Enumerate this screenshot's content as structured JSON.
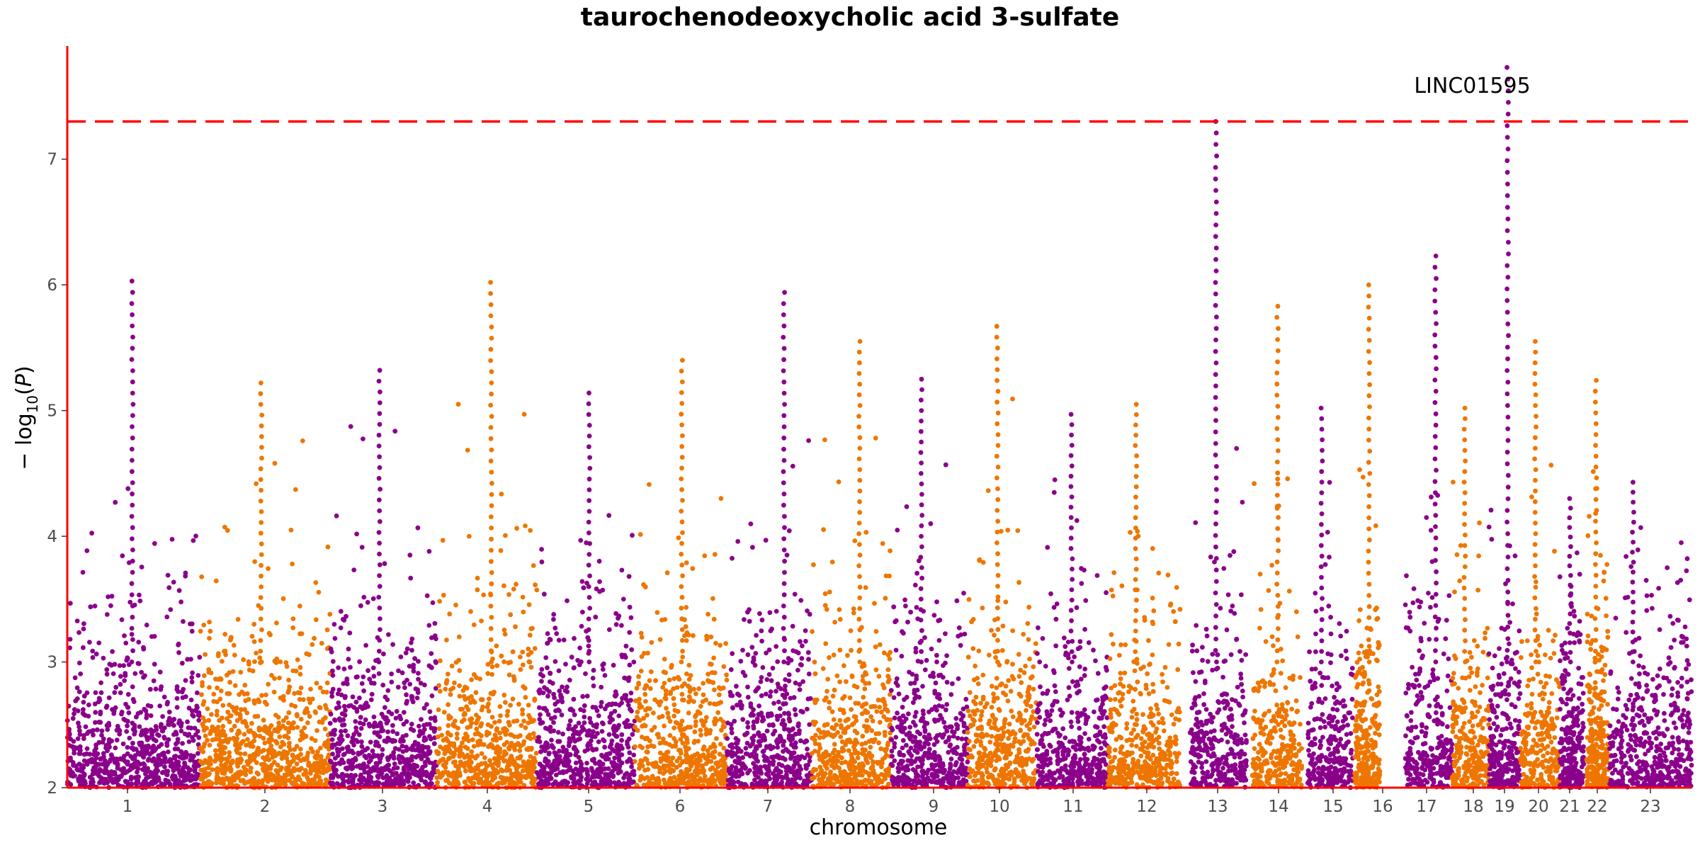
{
  "chart_data": {
    "type": "scatter",
    "subtype": "manhattan",
    "title": "taurochenodeoxycholic acid 3-sulfate",
    "xlabel": "chromosome",
    "ylabel": "−log10(P)",
    "ylim": [
      2,
      7.9
    ],
    "y_ticks": [
      2,
      3,
      4,
      5,
      6,
      7
    ],
    "grid": false,
    "legend": "none",
    "colors": {
      "odd": "#8B008B",
      "even": "#EE7600",
      "threshold": "#FF0000",
      "axis": "#FF0000"
    },
    "threshold": 7.3,
    "threshold_style": "dashed",
    "chromosomes": [
      "1",
      "2",
      "3",
      "4",
      "5",
      "6",
      "7",
      "8",
      "9",
      "10",
      "11",
      "12",
      "13",
      "14",
      "15",
      "16",
      "17",
      "18",
      "19",
      "20",
      "21",
      "22",
      "23"
    ],
    "peaks": [
      {
        "chr": "1",
        "value": 6.03
      },
      {
        "chr": "2",
        "value": 5.22
      },
      {
        "chr": "3",
        "value": 5.32
      },
      {
        "chr": "4",
        "value": 6.02
      },
      {
        "chr": "5",
        "value": 5.14
      },
      {
        "chr": "6",
        "value": 5.4
      },
      {
        "chr": "7",
        "value": 5.94
      },
      {
        "chr": "8",
        "value": 5.55
      },
      {
        "chr": "9",
        "value": 5.25
      },
      {
        "chr": "10",
        "value": 5.67
      },
      {
        "chr": "11",
        "value": 4.97
      },
      {
        "chr": "12",
        "value": 5.05
      },
      {
        "chr": "13",
        "value": 7.3
      },
      {
        "chr": "14",
        "value": 5.83
      },
      {
        "chr": "15",
        "value": 5.02
      },
      {
        "chr": "16",
        "value": 6.0
      },
      {
        "chr": "17",
        "value": 6.23
      },
      {
        "chr": "18",
        "value": 5.02
      },
      {
        "chr": "19",
        "value": 7.73
      },
      {
        "chr": "20",
        "value": 5.55
      },
      {
        "chr": "21",
        "value": 4.3
      },
      {
        "chr": "22",
        "value": 5.24
      },
      {
        "chr": "23",
        "value": 4.43
      }
    ],
    "annotations": [
      {
        "label": "LINC01595",
        "chr": "19",
        "value": 7.73
      }
    ]
  }
}
